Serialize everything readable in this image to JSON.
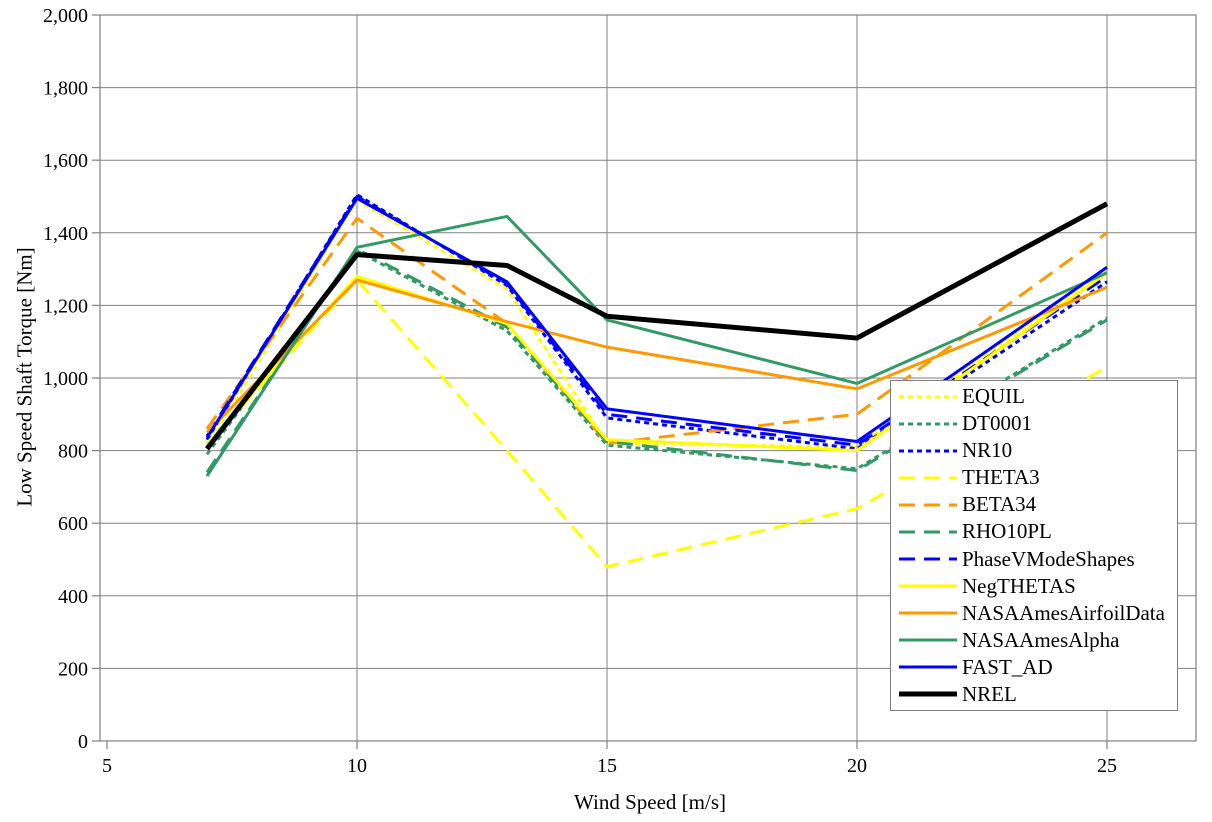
{
  "chart_data": {
    "type": "line",
    "title": "",
    "xlabel": "Wind Speed [m/s]",
    "ylabel": "Low Speed Shaft Torque [Nm]",
    "grid": true,
    "legend_position": "inside-bottom-right",
    "xlim": [
      4.8,
      26.8
    ],
    "ylim": [
      0,
      2000
    ],
    "xticks": [
      5,
      10,
      15,
      20,
      25
    ],
    "x_tick_labels": [
      "5",
      "10",
      "15",
      "20",
      "25"
    ],
    "yticks": [
      0,
      200,
      400,
      600,
      800,
      1000,
      1200,
      1400,
      1600,
      1800,
      2000
    ],
    "y_tick_labels": [
      "0",
      "200",
      "400",
      "600",
      "800",
      "1,000",
      "1,200",
      "1,400",
      "1,600",
      "1,800",
      "2,000"
    ],
    "x": [
      7,
      10,
      13,
      15,
      20,
      25
    ],
    "series": [
      {
        "name": "EQUIL",
        "color": "#FFFF00",
        "line_style": "dotted",
        "line_width": 3,
        "values": [
          810,
          1490,
          1245,
          820,
          810,
          1300
        ]
      },
      {
        "name": "DT0001",
        "color": "#339966",
        "line_style": "dotted",
        "line_width": 3,
        "values": [
          790,
          1350,
          1130,
          815,
          750,
          1165
        ]
      },
      {
        "name": "NR10",
        "color": "#0000FF",
        "line_style": "dotted",
        "line_width": 3,
        "values": [
          830,
          1505,
          1255,
          890,
          805,
          1265
        ]
      },
      {
        "name": "THETA3",
        "color": "#FFFF00",
        "line_style": "dashed",
        "line_width": 3,
        "values": [
          815,
          1270,
          800,
          480,
          640,
          1030
        ]
      },
      {
        "name": "BETA34",
        "color": "#FF9900",
        "line_style": "dashed",
        "line_width": 3,
        "values": [
          860,
          1440,
          1150,
          820,
          900,
          1400
        ]
      },
      {
        "name": "RHO10PL",
        "color": "#339966",
        "line_style": "dashed",
        "line_width": 3,
        "values": [
          740,
          1355,
          1140,
          825,
          745,
          1160
        ]
      },
      {
        "name": "PhaseVModeShapes",
        "color": "#0000FF",
        "line_style": "dashed",
        "line_width": 3,
        "values": [
          840,
          1500,
          1260,
          900,
          815,
          1280
        ]
      },
      {
        "name": "NegTHETAS",
        "color": "#FFFF00",
        "line_style": "solid",
        "line_width": 3,
        "values": [
          820,
          1280,
          1150,
          830,
          800,
          1290
        ]
      },
      {
        "name": "NASAAmesAirfoilData",
        "color": "#FF9900",
        "line_style": "solid",
        "line_width": 3,
        "values": [
          850,
          1270,
          1155,
          1085,
          970,
          1250
        ]
      },
      {
        "name": "NASAAmesAlpha",
        "color": "#339966",
        "line_style": "solid",
        "line_width": 3,
        "values": [
          730,
          1360,
          1445,
          1160,
          985,
          1290
        ]
      },
      {
        "name": "FAST_AD",
        "color": "#0000FF",
        "line_style": "solid",
        "line_width": 3,
        "values": [
          835,
          1495,
          1265,
          915,
          825,
          1305
        ]
      },
      {
        "name": "NREL",
        "color": "#000000",
        "line_style": "solid",
        "line_width": 5,
        "values": [
          805,
          1340,
          1310,
          1170,
          1110,
          1480
        ]
      }
    ]
  },
  "colors": {
    "background": "#FFFFFF",
    "grid": "#808080",
    "plot_border": "#808080",
    "text": "#000000"
  }
}
